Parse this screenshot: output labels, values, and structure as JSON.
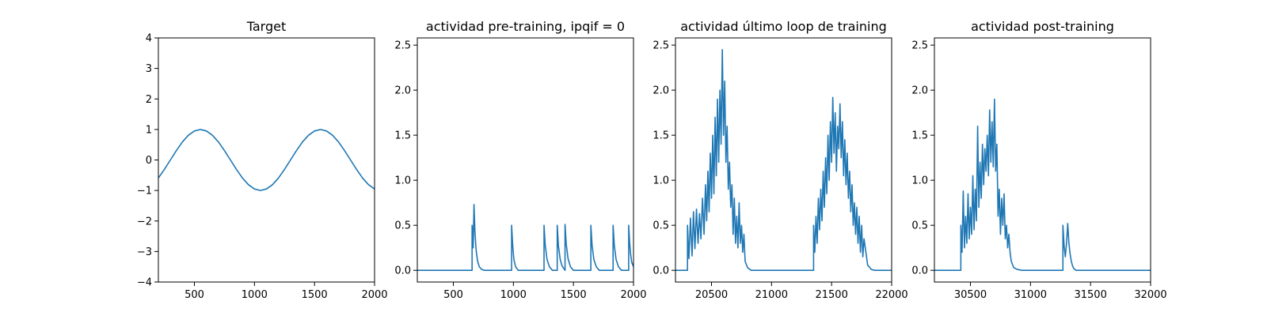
{
  "colors": {
    "series": "#1f77b4",
    "axes": "#000000",
    "background": "#ffffff"
  },
  "chart_data": [
    {
      "type": "line",
      "title": "Target",
      "xlim": [
        200,
        2000
      ],
      "ylim": [
        -4,
        4
      ],
      "xticks": [
        500,
        1000,
        1500,
        2000
      ],
      "yticks": [
        -4,
        -3,
        -2,
        -1,
        0,
        1,
        2,
        3,
        4
      ],
      "xlabel": "",
      "ylabel": "",
      "series": [
        {
          "x": [
            200,
            250,
            300,
            350,
            400,
            450,
            500,
            550,
            600,
            650,
            700,
            750,
            800,
            850,
            900,
            950,
            1000,
            1050,
            1100,
            1150,
            1200,
            1250,
            1300,
            1350,
            1400,
            1450,
            1500,
            1550,
            1600,
            1650,
            1700,
            1750,
            1800,
            1850,
            1900,
            1950,
            2000
          ],
          "y": [
            -0.59,
            -0.31,
            0.0,
            0.31,
            0.59,
            0.81,
            0.95,
            1.0,
            0.95,
            0.81,
            0.59,
            0.31,
            0.0,
            -0.31,
            -0.59,
            -0.81,
            -0.95,
            -1.0,
            -0.95,
            -0.81,
            -0.59,
            -0.31,
            0.0,
            0.31,
            0.59,
            0.81,
            0.95,
            1.0,
            0.95,
            0.81,
            0.59,
            0.31,
            0.0,
            -0.31,
            -0.59,
            -0.81,
            -0.95
          ]
        }
      ]
    },
    {
      "type": "line",
      "title": "actividad pre-training, ipqif = 0",
      "xlim": [
        200,
        2000
      ],
      "ylim": [
        -0.13,
        2.58
      ],
      "xticks": [
        500,
        1000,
        1500,
        2000
      ],
      "yticks": [
        0.0,
        0.5,
        1.0,
        1.5,
        2.0,
        2.5
      ],
      "xlabel": "",
      "ylabel": "",
      "series": [
        {
          "x": [
            200,
            656,
            656,
            665,
            672,
            680,
            690,
            702,
            716,
            735,
            760,
            985,
            985,
            994,
            1004,
            1018,
            1040,
            1255,
            1255,
            1265,
            1280,
            1300,
            1325,
            1365,
            1365,
            1375,
            1390,
            1405,
            1430,
            1430,
            1440,
            1455,
            1475,
            1500,
            1645,
            1645,
            1655,
            1670,
            1690,
            1715,
            1830,
            1830,
            1840,
            1855,
            1875,
            1900,
            1960,
            1960,
            1968,
            1976,
            1985,
            2000
          ],
          "y": [
            0.0,
            0.0,
            0.5,
            0.25,
            0.73,
            0.42,
            0.22,
            0.1,
            0.04,
            0.01,
            0.0,
            0.0,
            0.5,
            0.28,
            0.12,
            0.04,
            0.0,
            0.0,
            0.5,
            0.28,
            0.12,
            0.04,
            0.0,
            0.0,
            0.5,
            0.27,
            0.12,
            0.05,
            0.0,
            0.51,
            0.29,
            0.13,
            0.04,
            0.0,
            0.0,
            0.5,
            0.28,
            0.12,
            0.04,
            0.0,
            0.0,
            0.5,
            0.28,
            0.12,
            0.04,
            0.0,
            0.0,
            0.5,
            0.3,
            0.18,
            0.09,
            0.04
          ]
        }
      ]
    },
    {
      "type": "line",
      "title": "actividad último loop de training",
      "xlim": [
        20200,
        22000
      ],
      "ylim": [
        -0.13,
        2.58
      ],
      "xticks": [
        20500,
        21000,
        21500,
        22000
      ],
      "yticks": [
        0.0,
        0.5,
        1.0,
        1.5,
        2.0,
        2.5
      ],
      "xlabel": "",
      "ylabel": "",
      "series": [
        {
          "x": [
            20200,
            20300,
            20300,
            20312,
            20325,
            20338,
            20350,
            20362,
            20375,
            20388,
            20400,
            20412,
            20425,
            20438,
            20450,
            20460,
            20470,
            20480,
            20490,
            20500,
            20510,
            20520,
            20530,
            20540,
            20550,
            20560,
            20570,
            20580,
            20590,
            20600,
            20610,
            20620,
            20630,
            20640,
            20650,
            20660,
            20670,
            20680,
            20690,
            20700,
            20710,
            20720,
            20730,
            20740,
            20750,
            20760,
            20770,
            20780,
            20800,
            20830,
            20870,
            21350,
            21350,
            21360,
            21370,
            21380,
            21390,
            21400,
            21410,
            21420,
            21430,
            21440,
            21450,
            21460,
            21470,
            21480,
            21490,
            21500,
            21510,
            21520,
            21530,
            21540,
            21550,
            21560,
            21570,
            21580,
            21590,
            21600,
            21610,
            21620,
            21630,
            21640,
            21650,
            21660,
            21670,
            21680,
            21690,
            21700,
            21710,
            21720,
            21730,
            21740,
            21750,
            21760,
            21770,
            21800,
            21830,
            21860,
            22000
          ],
          "y": [
            0.0,
            0.0,
            0.5,
            0.13,
            0.58,
            0.16,
            0.65,
            0.24,
            0.68,
            0.3,
            0.63,
            0.35,
            0.8,
            0.4,
            0.95,
            0.55,
            1.1,
            0.65,
            1.3,
            0.8,
            1.5,
            0.85,
            1.7,
            1.05,
            1.9,
            1.2,
            2.0,
            1.4,
            2.45,
            1.5,
            2.1,
            1.2,
            1.6,
            0.9,
            1.2,
            0.7,
            0.95,
            0.4,
            0.8,
            0.3,
            0.6,
            0.25,
            0.75,
            0.3,
            0.5,
            0.2,
            0.4,
            0.1,
            0.03,
            0.0,
            0.0,
            0.0,
            0.5,
            0.2,
            0.6,
            0.3,
            0.8,
            0.45,
            0.9,
            0.55,
            1.1,
            0.7,
            1.25,
            0.85,
            1.5,
            1.0,
            1.65,
            1.2,
            1.92,
            1.3,
            1.75,
            1.1,
            1.6,
            1.35,
            1.85,
            1.25,
            1.65,
            1.05,
            1.45,
            0.95,
            1.3,
            0.8,
            1.1,
            0.65,
            0.95,
            0.5,
            0.75,
            0.4,
            0.7,
            0.3,
            0.6,
            0.2,
            0.5,
            0.15,
            0.35,
            0.06,
            0.01,
            0.0,
            0.0
          ]
        }
      ]
    },
    {
      "type": "line",
      "title": "actividad post-training",
      "xlim": [
        30200,
        32000
      ],
      "ylim": [
        -0.13,
        2.58
      ],
      "xticks": [
        30500,
        31000,
        31500,
        32000
      ],
      "yticks": [
        0.0,
        0.5,
        1.0,
        1.5,
        2.0,
        2.5
      ],
      "xlabel": "",
      "ylabel": "",
      "series": [
        {
          "x": [
            30200,
            30420,
            30420,
            30430,
            30440,
            30450,
            30460,
            30470,
            30480,
            30490,
            30500,
            30510,
            30520,
            30530,
            30540,
            30550,
            30560,
            30570,
            30580,
            30590,
            30600,
            30610,
            30620,
            30630,
            30640,
            30650,
            30660,
            30670,
            30680,
            30690,
            30700,
            30710,
            30720,
            30730,
            30740,
            30750,
            30760,
            30770,
            30780,
            30790,
            30800,
            30810,
            30820,
            30830,
            30840,
            30860,
            30890,
            30930,
            31270,
            31270,
            31280,
            31290,
            31300,
            31310,
            31320,
            31330,
            31340,
            31350,
            31360,
            31380,
            31410,
            31450,
            32000
          ],
          "y": [
            0.0,
            0.0,
            0.5,
            0.2,
            0.88,
            0.25,
            0.6,
            0.3,
            0.85,
            0.35,
            0.7,
            0.4,
            1.05,
            0.45,
            0.9,
            0.55,
            1.6,
            0.7,
            1.2,
            0.8,
            1.4,
            0.95,
            1.35,
            1.1,
            1.5,
            1.05,
            1.78,
            1.2,
            1.65,
            1.15,
            1.9,
            1.1,
            1.4,
            0.6,
            0.9,
            0.4,
            0.8,
            0.5,
            0.85,
            0.35,
            0.5,
            0.25,
            0.4,
            0.2,
            0.1,
            0.03,
            0.01,
            0.0,
            0.0,
            0.5,
            0.27,
            0.15,
            0.3,
            0.52,
            0.3,
            0.18,
            0.1,
            0.05,
            0.02,
            0.0,
            0.0,
            0.0,
            0.0
          ]
        }
      ]
    }
  ]
}
